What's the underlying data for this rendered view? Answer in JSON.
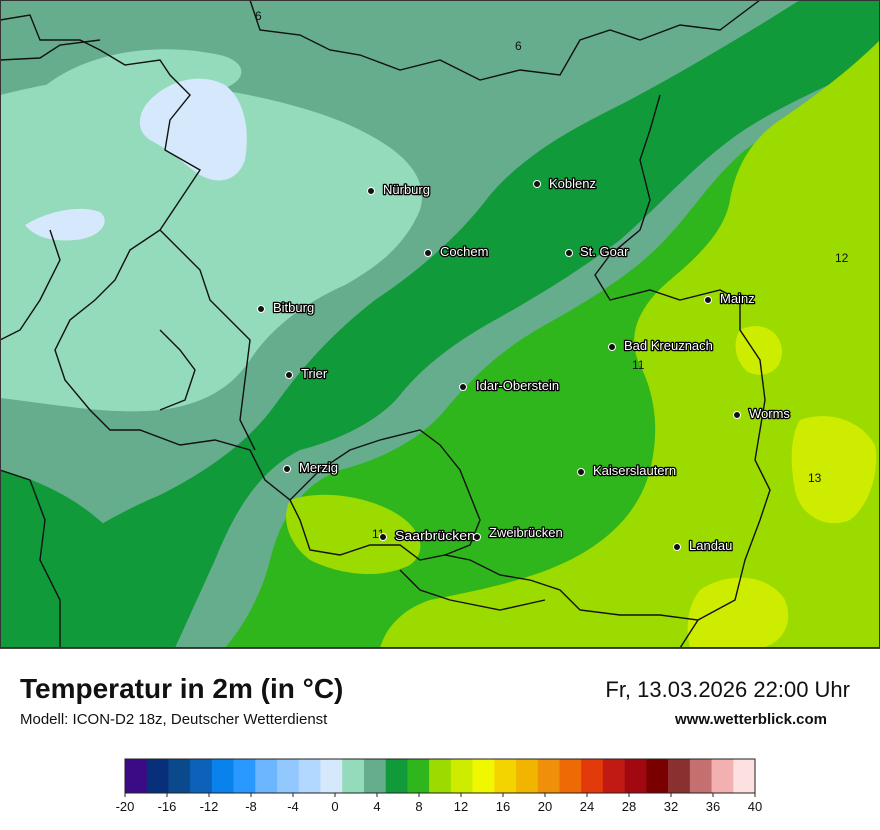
{
  "map": {
    "cities": [
      {
        "name": "Nürburg"
      },
      {
        "name": "Koblenz"
      },
      {
        "name": "Cochem"
      },
      {
        "name": "St. Goar"
      },
      {
        "name": "Bitburg"
      },
      {
        "name": "Mainz"
      },
      {
        "name": "Bad Kreuznach"
      },
      {
        "name": "Trier"
      },
      {
        "name": "Idar-Oberstein"
      },
      {
        "name": "Worms"
      },
      {
        "name": "Merzig"
      },
      {
        "name": "Kaiserslautern"
      },
      {
        "name": "Saarbrücken"
      },
      {
        "name": "Zweibrücken"
      },
      {
        "name": "Landau"
      }
    ],
    "isotherm_labels": [
      "6",
      "6",
      "12",
      "11",
      "13",
      "11"
    ],
    "colors": {
      "cold_patch": "#d6e8fb",
      "pale": "#93dbbb",
      "mid": "#66ad8d",
      "dark_green": "#119a3a",
      "green": "#2fb61d",
      "light_green": "#9bdb00",
      "yellow_green": "#cdec00"
    }
  },
  "footer": {
    "title": "Temperatur in 2m (in °C)",
    "model": "Modell: ICON-D2 18z, Deutscher Wetterdienst",
    "datetime": "Fr, 13.03.2026 22:00 Uhr",
    "website": "www.wetterblick.com"
  },
  "legend": {
    "colors": [
      "#3b0a85",
      "#08307a",
      "#0a4a8c",
      "#0b62b8",
      "#0a82eb",
      "#2a99ff",
      "#6cb6ff",
      "#93c8ff",
      "#b3d8ff",
      "#d6e8fb",
      "#93dbbb",
      "#66ad8d",
      "#119a3a",
      "#2fb61d",
      "#9bdb00",
      "#cdec00",
      "#f0f800",
      "#f3d300",
      "#f1b500",
      "#f0900a",
      "#ed6a05",
      "#e23a0a",
      "#c01a12",
      "#a1080f",
      "#7a0000",
      "#8b3030",
      "#c47070",
      "#f2b0b0",
      "#fde0e0"
    ],
    "ticks": [
      "-20",
      "-16",
      "-12",
      "-8",
      "-4",
      "0",
      "4",
      "8",
      "12",
      "16",
      "20",
      "24",
      "28",
      "32",
      "36",
      "40"
    ]
  }
}
